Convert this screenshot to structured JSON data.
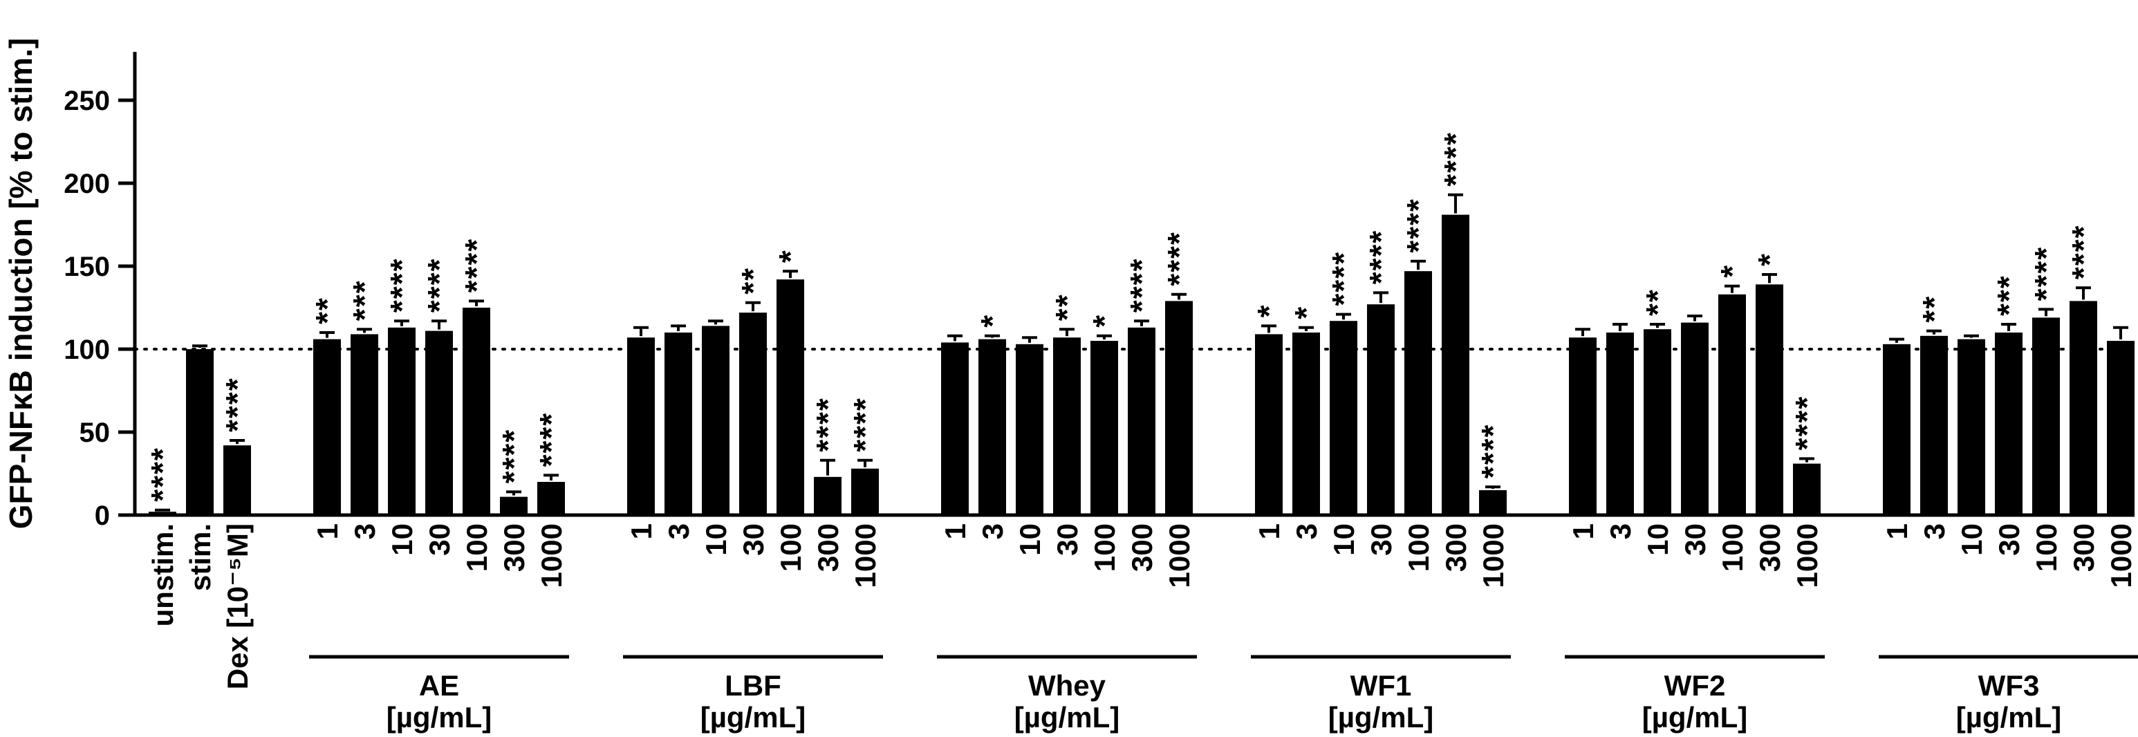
{
  "chart_data": {
    "type": "bar",
    "title": "",
    "ylabel": "GFP-NFκB induction [% to stim.]",
    "xlabel": "",
    "ylim": [
      0,
      250
    ],
    "yticks": [
      0,
      50,
      100,
      150,
      200,
      250
    ],
    "reference_line_y": 100,
    "bar_color": "#000000",
    "axis_color": "#000000",
    "groups": [
      {
        "name": "controls",
        "label": "",
        "unit": "",
        "bars": [
          {
            "x": "unstim.",
            "value": 2,
            "error": 1,
            "sig": "****"
          },
          {
            "x": "stim.",
            "value": 100,
            "error": 2,
            "sig": ""
          },
          {
            "x": "Dex [10⁻⁵M]",
            "value": 42,
            "error": 3,
            "sig": "****"
          }
        ]
      },
      {
        "name": "AE",
        "label": "AE",
        "unit": "[µg/mL]",
        "bars": [
          {
            "x": "1",
            "value": 106,
            "error": 4,
            "sig": "**"
          },
          {
            "x": "3",
            "value": 109,
            "error": 3,
            "sig": "***"
          },
          {
            "x": "10",
            "value": 113,
            "error": 4,
            "sig": "****"
          },
          {
            "x": "30",
            "value": 111,
            "error": 6,
            "sig": "****"
          },
          {
            "x": "100",
            "value": 125,
            "error": 4,
            "sig": "****"
          },
          {
            "x": "300",
            "value": 11,
            "error": 3,
            "sig": "****"
          },
          {
            "x": "1000",
            "value": 20,
            "error": 4,
            "sig": "****"
          }
        ]
      },
      {
        "name": "LBF",
        "label": "LBF",
        "unit": "[µg/mL]",
        "bars": [
          {
            "x": "1",
            "value": 107,
            "error": 6,
            "sig": ""
          },
          {
            "x": "3",
            "value": 110,
            "error": 4,
            "sig": ""
          },
          {
            "x": "10",
            "value": 114,
            "error": 3,
            "sig": ""
          },
          {
            "x": "30",
            "value": 122,
            "error": 6,
            "sig": "**"
          },
          {
            "x": "100",
            "value": 142,
            "error": 5,
            "sig": "*"
          },
          {
            "x": "300",
            "value": 23,
            "error": 10,
            "sig": "****"
          },
          {
            "x": "1000",
            "value": 28,
            "error": 5,
            "sig": "****"
          }
        ]
      },
      {
        "name": "Whey",
        "label": "Whey",
        "unit": "[µg/mL]",
        "bars": [
          {
            "x": "1",
            "value": 104,
            "error": 4,
            "sig": ""
          },
          {
            "x": "3",
            "value": 106,
            "error": 2,
            "sig": "*"
          },
          {
            "x": "10",
            "value": 103,
            "error": 4,
            "sig": ""
          },
          {
            "x": "30",
            "value": 107,
            "error": 5,
            "sig": "**"
          },
          {
            "x": "100",
            "value": 105,
            "error": 3,
            "sig": "*"
          },
          {
            "x": "300",
            "value": 113,
            "error": 4,
            "sig": "****"
          },
          {
            "x": "1000",
            "value": 129,
            "error": 4,
            "sig": "****"
          }
        ]
      },
      {
        "name": "WF1",
        "label": "WF1",
        "unit": "[µg/mL]",
        "bars": [
          {
            "x": "1",
            "value": 109,
            "error": 5,
            "sig": "*"
          },
          {
            "x": "3",
            "value": 110,
            "error": 3,
            "sig": "*"
          },
          {
            "x": "10",
            "value": 117,
            "error": 4,
            "sig": "****"
          },
          {
            "x": "30",
            "value": 127,
            "error": 7,
            "sig": "****"
          },
          {
            "x": "100",
            "value": 147,
            "error": 6,
            "sig": "****"
          },
          {
            "x": "300",
            "value": 181,
            "error": 12,
            "sig": "****"
          },
          {
            "x": "1000",
            "value": 15,
            "error": 2,
            "sig": "****"
          }
        ]
      },
      {
        "name": "WF2",
        "label": "WF2",
        "unit": "[µg/mL]",
        "bars": [
          {
            "x": "1",
            "value": 107,
            "error": 5,
            "sig": ""
          },
          {
            "x": "3",
            "value": 110,
            "error": 5,
            "sig": ""
          },
          {
            "x": "10",
            "value": 112,
            "error": 3,
            "sig": "**"
          },
          {
            "x": "30",
            "value": 116,
            "error": 4,
            "sig": ""
          },
          {
            "x": "100",
            "value": 133,
            "error": 5,
            "sig": "*"
          },
          {
            "x": "300",
            "value": 139,
            "error": 6,
            "sig": "*"
          },
          {
            "x": "1000",
            "value": 31,
            "error": 3,
            "sig": "****"
          }
        ]
      },
      {
        "name": "WF3",
        "label": "WF3",
        "unit": "[µg/mL]",
        "bars": [
          {
            "x": "1",
            "value": 103,
            "error": 3,
            "sig": ""
          },
          {
            "x": "3",
            "value": 108,
            "error": 3,
            "sig": "**"
          },
          {
            "x": "10",
            "value": 106,
            "error": 2,
            "sig": ""
          },
          {
            "x": "30",
            "value": 110,
            "error": 5,
            "sig": "***"
          },
          {
            "x": "100",
            "value": 119,
            "error": 5,
            "sig": "****"
          },
          {
            "x": "300",
            "value": 129,
            "error": 8,
            "sig": "****"
          },
          {
            "x": "1000",
            "value": 105,
            "error": 8,
            "sig": ""
          }
        ]
      }
    ]
  }
}
